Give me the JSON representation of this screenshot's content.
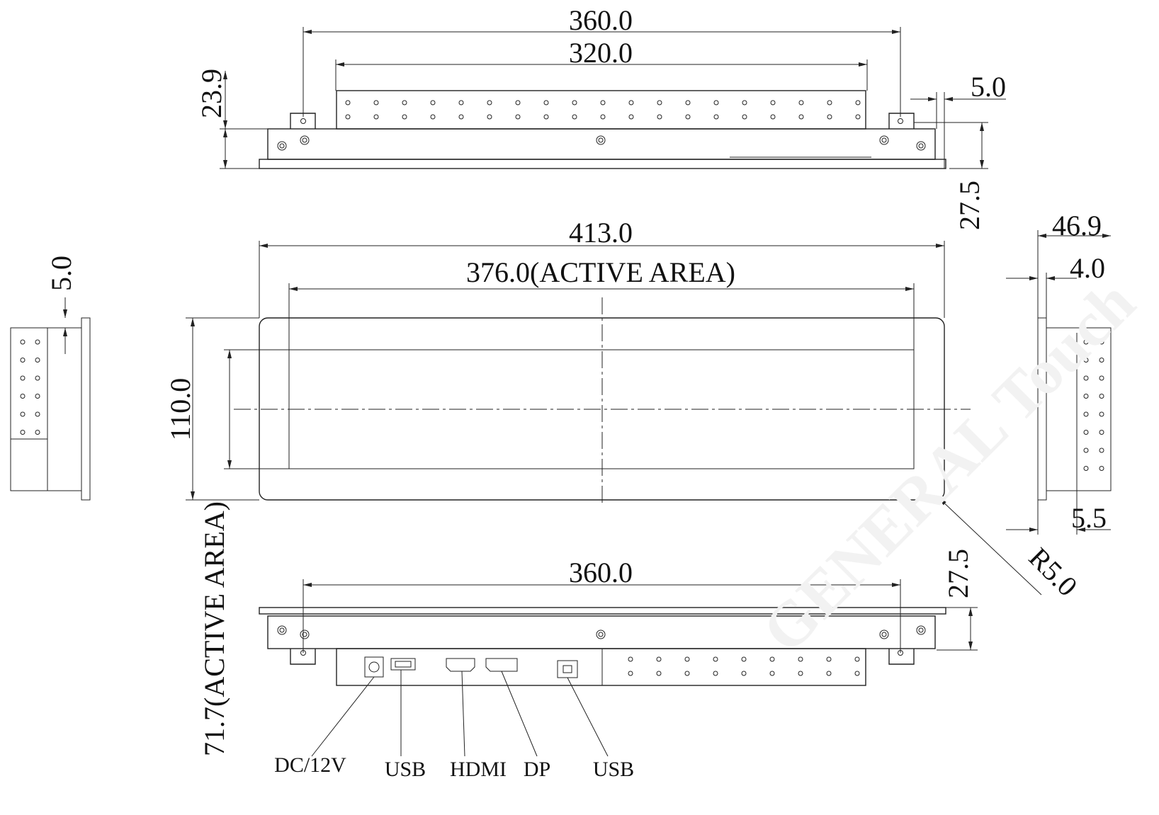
{
  "dimensions": {
    "top_width": "360.0",
    "top_bracket": "320.0",
    "top_height": "23.9",
    "top_offset": "5.0",
    "top_depth": "27.5",
    "front_width": "413.0",
    "front_active_width": "376.0(ACTIVE AREA)",
    "front_height": "110.0",
    "front_active_height": "71.7(ACTIVE AREA)",
    "corner_radius": "R5.0",
    "left_offset": "5.0",
    "right_depth": "46.9",
    "right_glass": "4.0",
    "right_bottom": "5.5",
    "bottom_width": "360.0",
    "bottom_depth": "27.5"
  },
  "ports": [
    "DC/12V",
    "USB",
    "HDMI",
    "DP",
    "USB"
  ],
  "watermark": "GENERAL Touch"
}
